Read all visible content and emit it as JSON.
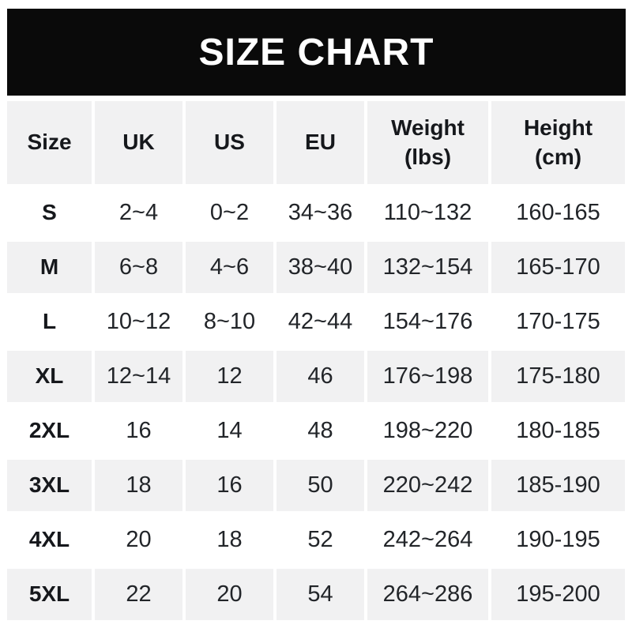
{
  "chart_data": {
    "type": "table",
    "title": "SIZE CHART",
    "columns": [
      {
        "label": "Size"
      },
      {
        "label": "UK"
      },
      {
        "label": "US"
      },
      {
        "label": "EU"
      },
      {
        "label": "Weight",
        "sub": "(lbs)"
      },
      {
        "label": "Height",
        "sub": "(cm)"
      }
    ],
    "rows": [
      [
        "S",
        "2~4",
        "0~2",
        "34~36",
        "110~132",
        "160-165"
      ],
      [
        "M",
        "6~8",
        "4~6",
        "38~40",
        "132~154",
        "165-170"
      ],
      [
        "L",
        "10~12",
        "8~10",
        "42~44",
        "154~176",
        "170-175"
      ],
      [
        "XL",
        "12~14",
        "12",
        "46",
        "176~198",
        "175-180"
      ],
      [
        "2XL",
        "16",
        "14",
        "48",
        "198~220",
        "180-185"
      ],
      [
        "3XL",
        "18",
        "16",
        "50",
        "220~242",
        "185-190"
      ],
      [
        "4XL",
        "20",
        "18",
        "52",
        "242~264",
        "190-195"
      ],
      [
        "5XL",
        "22",
        "20",
        "54",
        "264~286",
        "195-200"
      ]
    ]
  },
  "colors": {
    "banner-bg": "#0a0a0a",
    "banner-text": "#ffffff",
    "alt-row-bg": "#f1f1f2",
    "header-text": "#16181c",
    "cell-text": "#222529"
  }
}
